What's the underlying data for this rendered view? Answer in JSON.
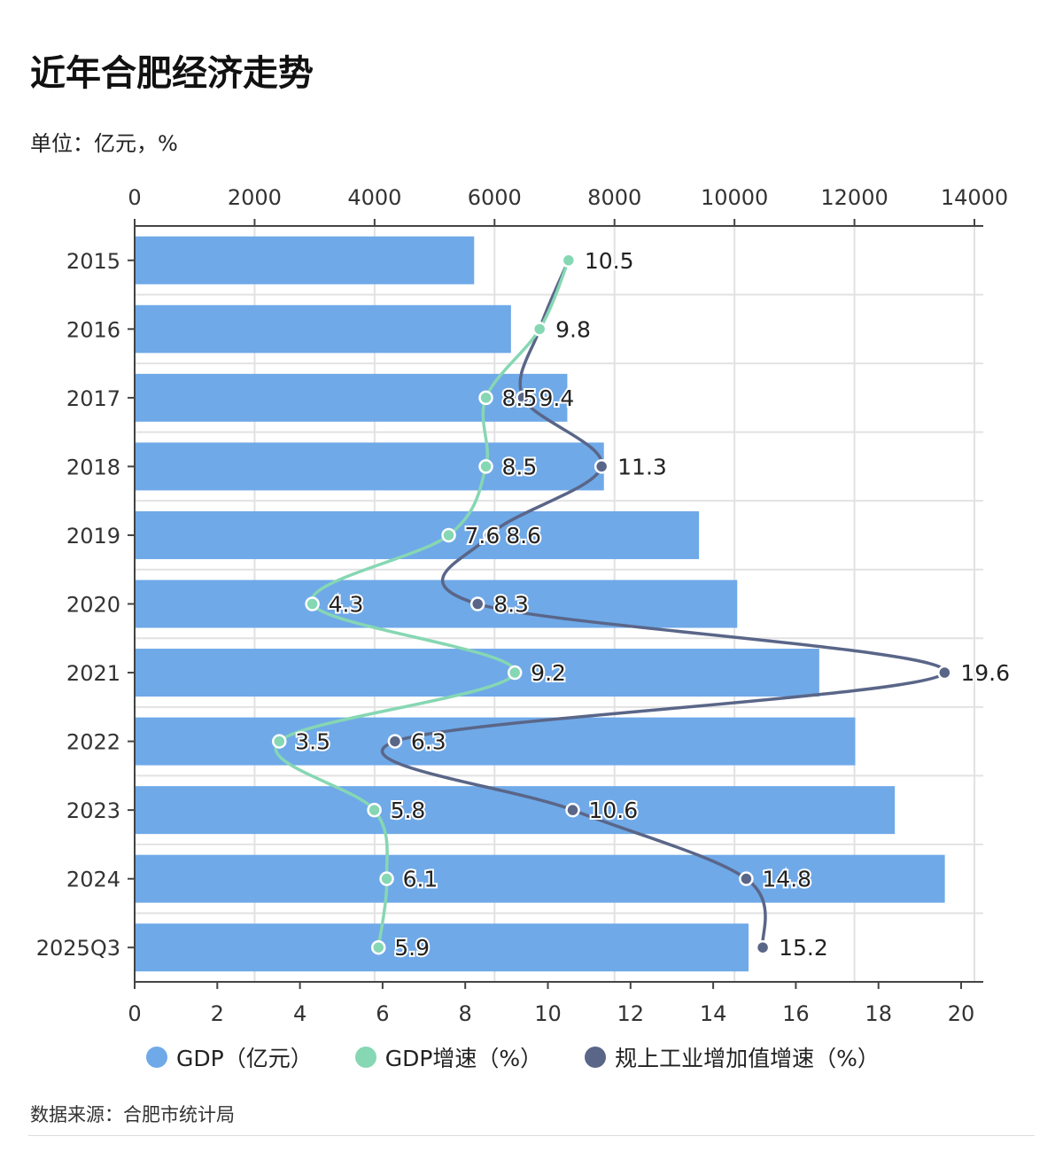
{
  "title": "近年合肥经济走势",
  "unit": "单位：亿元，%",
  "source": "数据来源：合肥市统计局",
  "chart_data": {
    "type": "bar+line",
    "orientation": "horizontal",
    "categories": [
      "2015",
      "2016",
      "2017",
      "2018",
      "2019",
      "2020",
      "2021",
      "2022",
      "2023",
      "2024",
      "2025Q3"
    ],
    "top_axis": {
      "range": [
        0,
        14000
      ],
      "ticks": [
        "0",
        "2000",
        "4000",
        "6000",
        "8000",
        "10000",
        "12000",
        "14000"
      ]
    },
    "bottom_axis": {
      "range": [
        0,
        20
      ],
      "ticks": [
        "0",
        "2",
        "4",
        "6",
        "8",
        "10",
        "12",
        "14",
        "16",
        "18",
        "20"
      ]
    },
    "grid": true,
    "legend_position": "bottom",
    "series": [
      {
        "name": "GDP（亿元）",
        "type": "bar",
        "axis": "top",
        "color": "#6fa9e8",
        "values": [
          5660,
          6274,
          7213,
          7823,
          9409,
          10046,
          11413,
          12013,
          12673,
          13507,
          10234
        ]
      },
      {
        "name": "GDP增速（%）",
        "type": "line",
        "axis": "bottom",
        "color": "#86d7b3",
        "values": [
          10.5,
          9.8,
          8.5,
          8.5,
          7.6,
          4.3,
          9.2,
          3.5,
          5.8,
          6.1,
          5.9
        ],
        "labels": [
          "",
          "",
          "8.5",
          "8.5",
          "7.6",
          "4.3",
          "9.2",
          "3.5",
          "5.8",
          "6.1",
          "5.9"
        ]
      },
      {
        "name": "规上工业增加值增速（%）",
        "type": "line",
        "axis": "bottom",
        "color": "#5a6688",
        "values": [
          10.5,
          9.8,
          9.4,
          11.3,
          8.6,
          8.3,
          19.6,
          6.3,
          10.6,
          14.8,
          15.2
        ],
        "labels": [
          "10.5",
          "9.8",
          "9.4",
          "11.3",
          "8.6",
          "8.3",
          "19.6",
          "6.3",
          "10.6",
          "14.8",
          "15.2"
        ]
      }
    ]
  }
}
